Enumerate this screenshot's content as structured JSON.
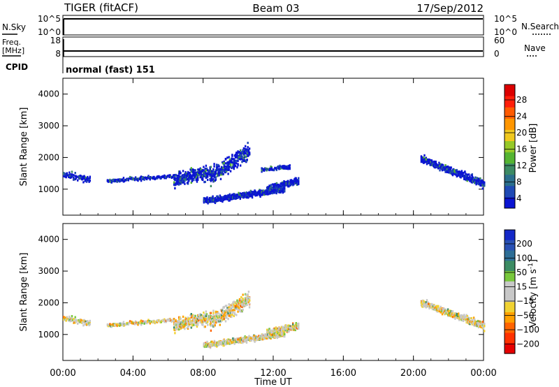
{
  "header": {
    "title": "TIGER (fitACF)",
    "beam": "Beam 03",
    "date": "17/Sep/2012"
  },
  "status_panels": {
    "nsky": {
      "left_label": "N.Sky",
      "left_ticks": [
        "10^5",
        "10^0"
      ],
      "right_label": "N.Search",
      "right_ticks": [
        "10^5",
        "10^0"
      ],
      "level": 0.92
    },
    "freq": {
      "left_label_top": "Freq.",
      "left_label_bottom": "[MHz]",
      "left_ticks": [
        "18",
        "8"
      ],
      "right_label": "Nave",
      "right_ticks": [
        "60",
        "0"
      ],
      "level": 10.5
    },
    "cpid": {
      "label": "CPID",
      "program": "normal (fast) 151"
    }
  },
  "time_axis": {
    "label": "Time UT",
    "ticks": [
      "00:00",
      "04:00",
      "08:00",
      "12:00",
      "16:00",
      "20:00",
      "00:00"
    ],
    "range_hours": [
      0,
      24
    ]
  },
  "colorbars": {
    "power": {
      "label": "Power [dB]",
      "ticks": [
        "4",
        "8",
        "12",
        "16",
        "20",
        "24",
        "28"
      ],
      "colors": [
        "#0a14d2",
        "#1f4ab4",
        "#2a6e8c",
        "#3c8a64",
        "#55b432",
        "#96c828",
        "#f0c81e",
        "#ff9600",
        "#ff5a00",
        "#ff1e0a",
        "#dc0000"
      ]
    },
    "velocity": {
      "label_main": "Velocity",
      "label_unit": "[m s",
      "label_exp": "-1",
      "label_close": "]",
      "ticks": [
        "200",
        "100",
        "50",
        "15",
        "-15",
        "-50",
        "-100",
        "-200"
      ],
      "colors": [
        "#1428c8",
        "#2850b4",
        "#2d6e96",
        "#3c8c64",
        "#78c83c",
        "#c8c8c8",
        "#c8c8c8",
        "#f0d232",
        "#ffa000",
        "#ff6400",
        "#ff3200",
        "#e60000"
      ]
    }
  },
  "chart_data": [
    {
      "type": "scatter",
      "name": "power",
      "xlabel": "Time UT",
      "ylabel": "Slant Range [km]",
      "xlim": [
        0,
        24
      ],
      "ylim": [
        180,
        4500
      ],
      "yticks": [
        1000,
        2000,
        3000,
        4000
      ],
      "clusters": [
        {
          "t0": 0.0,
          "t1": 1.5,
          "r0": 1450,
          "r1": 1300,
          "spread": 140,
          "density": 0.35
        },
        {
          "t0": 2.5,
          "t1": 6.3,
          "r0": 1250,
          "r1": 1400,
          "spread": 80,
          "density": 0.18
        },
        {
          "t0": 6.3,
          "t1": 8.4,
          "r0": 1300,
          "r1": 1500,
          "spread": 320,
          "density": 0.85
        },
        {
          "t0": 8.4,
          "t1": 10.6,
          "r0": 1400,
          "r1": 2200,
          "spread": 380,
          "density": 0.8
        },
        {
          "t0": 8.0,
          "t1": 12.6,
          "r0": 620,
          "r1": 980,
          "spread": 130,
          "density": 0.75
        },
        {
          "t0": 11.6,
          "t1": 13.4,
          "r0": 1000,
          "r1": 1250,
          "spread": 160,
          "density": 0.7
        },
        {
          "t0": 11.3,
          "t1": 12.9,
          "r0": 1600,
          "r1": 1700,
          "spread": 90,
          "density": 0.35
        },
        {
          "t0": 20.4,
          "t1": 24.0,
          "r0": 1950,
          "r1": 1150,
          "spread": 170,
          "density": 0.7
        }
      ],
      "power_mean_db": 5
    },
    {
      "type": "scatter",
      "name": "velocity",
      "xlabel": "Time UT",
      "ylabel": "Slant Range [km]",
      "xlim": [
        0,
        24
      ],
      "ylim": [
        180,
        4500
      ],
      "yticks": [
        1000,
        2000,
        3000,
        4000
      ],
      "clusters": [
        {
          "t0": 0.0,
          "t1": 1.5,
          "r0": 1500,
          "r1": 1350,
          "spread": 120,
          "density": 0.3
        },
        {
          "t0": 2.5,
          "t1": 6.3,
          "r0": 1280,
          "r1": 1450,
          "spread": 80,
          "density": 0.25
        },
        {
          "t0": 6.3,
          "t1": 8.4,
          "r0": 1300,
          "r1": 1500,
          "spread": 300,
          "density": 0.85
        },
        {
          "t0": 8.4,
          "t1": 10.6,
          "r0": 1400,
          "r1": 2100,
          "spread": 350,
          "density": 0.85
        },
        {
          "t0": 8.0,
          "t1": 12.6,
          "r0": 650,
          "r1": 1000,
          "spread": 120,
          "density": 0.75
        },
        {
          "t0": 11.6,
          "t1": 13.4,
          "r0": 1050,
          "r1": 1250,
          "spread": 160,
          "density": 0.75
        },
        {
          "t0": 20.4,
          "t1": 24.0,
          "r0": 2000,
          "r1": 1250,
          "spread": 160,
          "density": 0.7
        }
      ]
    }
  ]
}
